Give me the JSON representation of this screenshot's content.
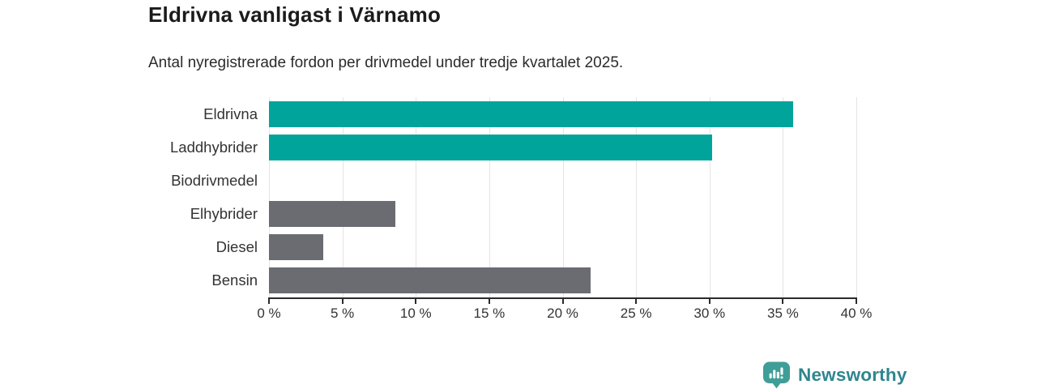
{
  "header": {
    "title": "Eldrivna vanligast i Värnamo",
    "subtitle": "Antal nyregistrerade fordon per drivmedel under tredje kvartalet 2025."
  },
  "chart_data": {
    "type": "bar",
    "orientation": "horizontal",
    "title": "Eldrivna vanligast i Värnamo",
    "subtitle": "Antal nyregistrerade fordon per drivmedel under tredje kvartalet 2025.",
    "categories": [
      "Eldrivna",
      "Laddhybrider",
      "Biodrivmedel",
      "Elhybrider",
      "Diesel",
      "Bensin"
    ],
    "values": [
      35.7,
      30.2,
      0,
      8.6,
      3.7,
      21.9
    ],
    "unit": "%",
    "xlim": [
      0,
      40
    ],
    "x_ticks": [
      0,
      5,
      10,
      15,
      20,
      25,
      30,
      35,
      40
    ],
    "x_tick_labels": [
      "0 %",
      "5 %",
      "10 %",
      "15 %",
      "20 %",
      "25 %",
      "30 %",
      "35 %",
      "40 %"
    ],
    "bar_colors": [
      "#00a49a",
      "#00a49a",
      "#00a49a",
      "#6b6b72",
      "#6b6b72",
      "#6b6b72"
    ],
    "grid": true,
    "legend": "none",
    "value_labels": false
  },
  "colors": {
    "bar_teal": "#00a49a",
    "bar_gray": "#6b6b72",
    "gridline": "#e4e4e4",
    "axis": "#2b2b2b",
    "text": "#333333",
    "brand_teal": "#2e868e",
    "logo_fill": "#3f9e97"
  },
  "footer": {
    "brand": "Newsworthy"
  }
}
